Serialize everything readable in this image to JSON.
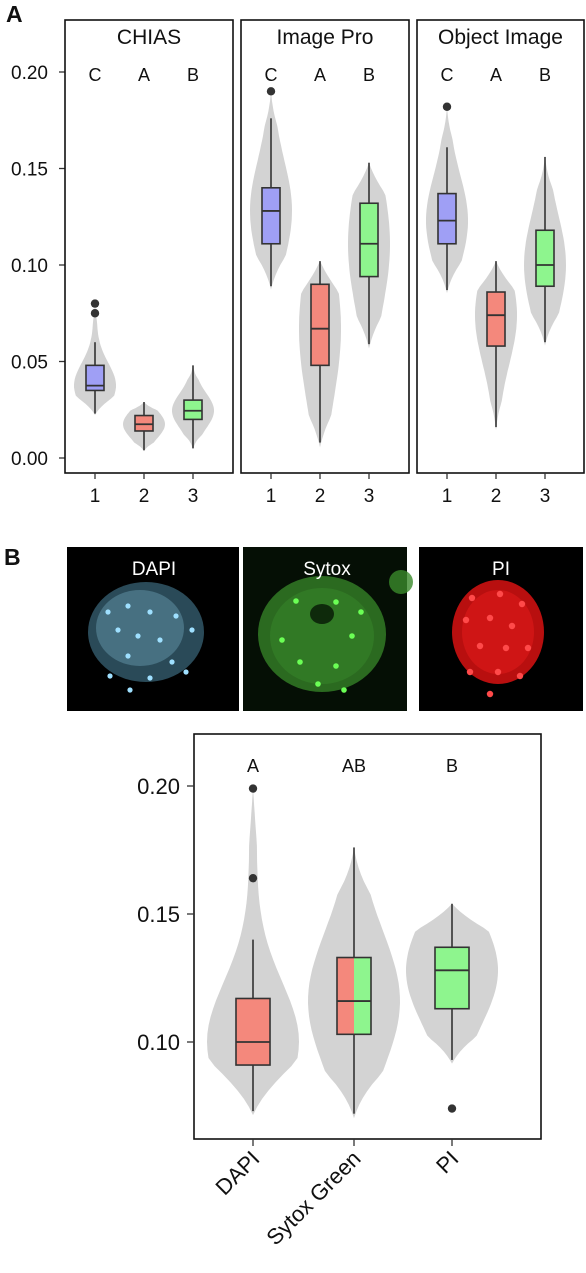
{
  "panel_a_letter": "A",
  "panel_b_letter": "B",
  "micrograph_labels": [
    "DAPI",
    "Sytox",
    "PI"
  ],
  "colors": {
    "violin": "#d3d3d3",
    "blue": "#9f9ff5",
    "red": "#f4887c",
    "green": "#8ef58e",
    "outlier": "#333333",
    "micro_bg": "#000000",
    "dapi": "#5fb8dc",
    "sytox_cell": "#2e6b22",
    "sytox_dot": "#55ff44",
    "pi": "#e01515"
  },
  "chart_data": [
    {
      "type": "violin+box",
      "panel": "A",
      "ylim": [
        0.0,
        0.21
      ],
      "yticks": [
        "0.00",
        "0.05",
        "0.10",
        "0.15",
        "0.20"
      ],
      "ytick_values": [
        0.0,
        0.05,
        0.1,
        0.15,
        0.2
      ],
      "facets": [
        {
          "title": "CHIAS",
          "groups": [
            {
              "x": "1",
              "color": "blue",
              "letter": "C",
              "min": 0.023,
              "q1": 0.035,
              "median": 0.0375,
              "q3": 0.048,
              "max": 0.06,
              "outliers": [
                0.075,
                0.08
              ]
            },
            {
              "x": "2",
              "color": "red",
              "letter": "A",
              "min": 0.004,
              "q1": 0.014,
              "median": 0.0175,
              "q3": 0.022,
              "max": 0.029,
              "outliers": []
            },
            {
              "x": "3",
              "color": "green",
              "letter": "B",
              "min": 0.005,
              "q1": 0.02,
              "median": 0.0245,
              "q3": 0.03,
              "max": 0.048,
              "outliers": []
            }
          ]
        },
        {
          "title": "Image Pro",
          "groups": [
            {
              "x": "1",
              "color": "blue",
              "letter": "C",
              "min": 0.089,
              "q1": 0.111,
              "median": 0.128,
              "q3": 0.14,
              "max": 0.176,
              "outliers": [
                0.19
              ]
            },
            {
              "x": "2",
              "color": "red",
              "letter": "A",
              "min": 0.008,
              "q1": 0.048,
              "median": 0.067,
              "q3": 0.09,
              "max": 0.102,
              "outliers": []
            },
            {
              "x": "3",
              "color": "green",
              "letter": "B",
              "min": 0.059,
              "q1": 0.094,
              "median": 0.111,
              "q3": 0.132,
              "max": 0.153,
              "outliers": []
            }
          ]
        },
        {
          "title": "Object Image",
          "groups": [
            {
              "x": "1",
              "color": "blue",
              "letter": "C",
              "min": 0.087,
              "q1": 0.111,
              "median": 0.123,
              "q3": 0.137,
              "max": 0.161,
              "outliers": [
                0.182
              ]
            },
            {
              "x": "2",
              "color": "red",
              "letter": "A",
              "min": 0.016,
              "q1": 0.058,
              "median": 0.074,
              "q3": 0.086,
              "max": 0.102,
              "outliers": []
            },
            {
              "x": "3",
              "color": "green",
              "letter": "B",
              "min": 0.06,
              "q1": 0.089,
              "median": 0.1,
              "q3": 0.118,
              "max": 0.156,
              "outliers": []
            }
          ]
        }
      ]
    },
    {
      "type": "violin+box",
      "panel": "B",
      "ylim": [
        0.072,
        0.215
      ],
      "yticks": [
        "0.10",
        "0.15",
        "0.20"
      ],
      "ytick_values": [
        0.1,
        0.15,
        0.2
      ],
      "groups": [
        {
          "x": "DAPI",
          "color": "red",
          "letter": "A",
          "min": 0.073,
          "q1": 0.091,
          "median": 0.1,
          "q3": 0.117,
          "max": 0.14,
          "outliers": [
            0.164,
            0.199
          ]
        },
        {
          "x": "Sytox Green",
          "color": "split",
          "letter": "AB",
          "min": 0.072,
          "q1": 0.103,
          "median": 0.116,
          "q3": 0.133,
          "max": 0.176,
          "outliers": []
        },
        {
          "x": "PI",
          "color": "green",
          "letter": "B",
          "min": 0.093,
          "q1": 0.113,
          "median": 0.128,
          "q3": 0.137,
          "max": 0.154,
          "outliers": [
            0.074
          ]
        }
      ]
    }
  ]
}
